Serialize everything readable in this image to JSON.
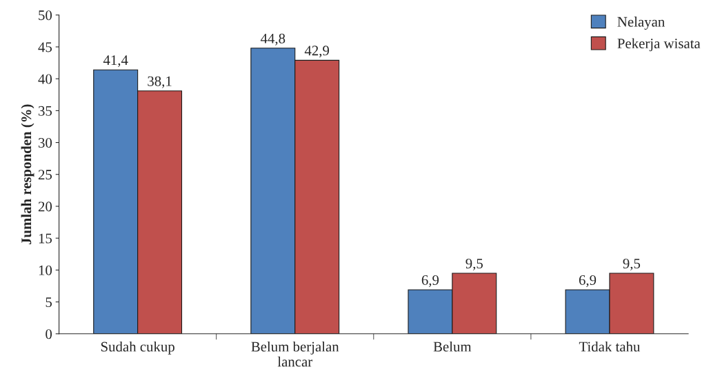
{
  "chart_data": {
    "type": "bar",
    "ylabel": "Jumlah responden (%)",
    "categories": [
      "Sudah cukup",
      "Belum berjalan\nlancar",
      "Belum",
      "Tidak tahu"
    ],
    "series": [
      {
        "name": "Nelayan",
        "color": "#4f81bd",
        "values": [
          41.4,
          44.8,
          6.9,
          6.9
        ],
        "value_labels": [
          "41,4",
          "44,8",
          "6,9",
          "6,9"
        ]
      },
      {
        "name": "Pekerja wisata",
        "color": "#c0504d",
        "values": [
          38.1,
          42.9,
          9.5,
          9.5
        ],
        "value_labels": [
          "38,1",
          "42,9",
          "9,5",
          "9,5"
        ]
      }
    ],
    "ylim": [
      0,
      50
    ],
    "yticks": [
      0,
      5,
      10,
      15,
      20,
      25,
      30,
      35,
      40,
      45,
      50
    ],
    "grid": false,
    "legend": "top right"
  }
}
